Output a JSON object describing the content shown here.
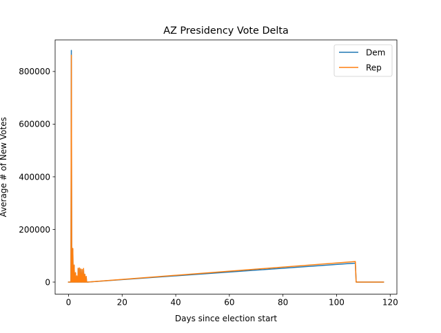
{
  "chart_data": {
    "type": "line",
    "title": "AZ Presidency Vote Delta",
    "xlabel": "Days since election start",
    "ylabel": "Average # of New Votes",
    "xlim": [
      -5.0,
      122.5
    ],
    "ylim": [
      -46000,
      920000
    ],
    "xticks": [
      0,
      20,
      40,
      60,
      80,
      100,
      120
    ],
    "yticks": [
      0,
      200000,
      400000,
      600000,
      800000
    ],
    "legend_position": "upper right",
    "grid": false,
    "series": [
      {
        "name": "Dem",
        "color": "#1f77b4",
        "points": [
          [
            0,
            0
          ],
          [
            0.9,
            0
          ],
          [
            1.05,
            880000
          ],
          [
            1.2,
            0
          ],
          [
            1.5,
            0
          ],
          [
            1.6,
            125000
          ],
          [
            1.75,
            0
          ],
          [
            2.0,
            0
          ],
          [
            2.1,
            62000
          ],
          [
            2.25,
            0
          ],
          [
            2.5,
            0
          ],
          [
            2.6,
            35000
          ],
          [
            2.75,
            0
          ],
          [
            3.0,
            0
          ],
          [
            3.1,
            22000
          ],
          [
            3.25,
            0
          ],
          [
            3.5,
            0
          ],
          [
            3.6,
            50000
          ],
          [
            3.75,
            0
          ],
          [
            4.0,
            0
          ],
          [
            4.1,
            52000
          ],
          [
            4.25,
            0
          ],
          [
            4.5,
            0
          ],
          [
            4.6,
            48000
          ],
          [
            4.75,
            0
          ],
          [
            5.0,
            0
          ],
          [
            5.1,
            46000
          ],
          [
            5.25,
            0
          ],
          [
            5.5,
            0
          ],
          [
            5.6,
            50000
          ],
          [
            5.75,
            0
          ],
          [
            6.0,
            0
          ],
          [
            6.1,
            28000
          ],
          [
            6.25,
            0
          ],
          [
            6.5,
            0
          ],
          [
            6.6,
            20000
          ],
          [
            6.75,
            0
          ],
          [
            7.0,
            0
          ],
          [
            107.0,
            72000
          ],
          [
            107.3,
            0
          ],
          [
            117.5,
            0
          ]
        ]
      },
      {
        "name": "Rep",
        "color": "#ff7f0e",
        "points": [
          [
            0,
            0
          ],
          [
            0.9,
            0
          ],
          [
            1.05,
            862000
          ],
          [
            1.2,
            0
          ],
          [
            1.5,
            0
          ],
          [
            1.6,
            128000
          ],
          [
            1.75,
            0
          ],
          [
            2.0,
            0
          ],
          [
            2.1,
            65000
          ],
          [
            2.25,
            0
          ],
          [
            2.5,
            0
          ],
          [
            2.6,
            36000
          ],
          [
            2.75,
            0
          ],
          [
            3.0,
            0
          ],
          [
            3.1,
            24000
          ],
          [
            3.25,
            0
          ],
          [
            3.5,
            0
          ],
          [
            3.6,
            53000
          ],
          [
            3.75,
            0
          ],
          [
            4.0,
            0
          ],
          [
            4.1,
            54000
          ],
          [
            4.25,
            0
          ],
          [
            4.5,
            0
          ],
          [
            4.6,
            50000
          ],
          [
            4.75,
            0
          ],
          [
            5.0,
            0
          ],
          [
            5.1,
            48000
          ],
          [
            5.25,
            0
          ],
          [
            5.5,
            0
          ],
          [
            5.6,
            52000
          ],
          [
            5.75,
            0
          ],
          [
            6.0,
            0
          ],
          [
            6.1,
            30000
          ],
          [
            6.25,
            0
          ],
          [
            6.5,
            0
          ],
          [
            6.6,
            22000
          ],
          [
            6.75,
            0
          ],
          [
            7.0,
            0
          ],
          [
            107.0,
            78000
          ],
          [
            107.3,
            0
          ],
          [
            117.5,
            0
          ]
        ]
      }
    ]
  }
}
